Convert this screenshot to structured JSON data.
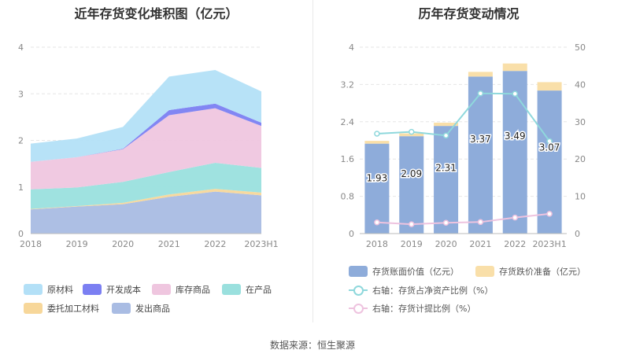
{
  "left_title": "近年存货变化堆积图（亿元）",
  "right_title": "历年存货变动情况",
  "footer": "数据来源：恒生聚源",
  "colors": {
    "raw_material": "#b3e0f7",
    "dev_cost": "#7b7ff2",
    "stock_goods": "#efc6df",
    "in_production": "#9ae0de",
    "consigned": "#f7d79a",
    "shipped": "#a9bce3",
    "bar_value": "#8eacda",
    "bar_reserve": "#f9dfa9",
    "line_ratio": "#8fd8dc",
    "line_provision": "#eec3df"
  },
  "chart_data": [
    {
      "type": "area",
      "stacked": true,
      "categories": [
        "2018",
        "2019",
        "2020",
        "2021",
        "2022",
        "2023H1"
      ],
      "ylim": [
        0,
        4
      ],
      "yticks": [
        "0",
        "1",
        "2",
        "3",
        "4"
      ],
      "series": [
        {
          "name": "发出商品",
          "values": [
            0.52,
            0.58,
            0.63,
            0.79,
            0.9,
            0.82
          ]
        },
        {
          "name": "委托加工材料",
          "values": [
            0.01,
            0.01,
            0.03,
            0.05,
            0.06,
            0.06
          ]
        },
        {
          "name": "在产品",
          "values": [
            0.42,
            0.4,
            0.45,
            0.48,
            0.56,
            0.53
          ]
        },
        {
          "name": "库存商品",
          "values": [
            0.59,
            0.65,
            0.7,
            1.22,
            1.17,
            0.9
          ]
        },
        {
          "name": "开发成本",
          "values": [
            0.0,
            0.0,
            0.01,
            0.11,
            0.1,
            0.07
          ]
        },
        {
          "name": "原材料",
          "values": [
            0.39,
            0.4,
            0.47,
            0.72,
            0.72,
            0.67
          ]
        }
      ],
      "legend": [
        "原材料",
        "开发成本",
        "库存商品",
        "在产品",
        "委托加工材料",
        "发出商品"
      ],
      "legend_position": "bottom"
    },
    {
      "type": "bar",
      "stacked": true,
      "categories": [
        "2018",
        "2019",
        "2020",
        "2021",
        "2022",
        "2023H1"
      ],
      "ylim": [
        0,
        4
      ],
      "yticks": [
        "0",
        "0.8",
        "1.6",
        "2.4",
        "3.2",
        "4"
      ],
      "y2lim": [
        0,
        50
      ],
      "y2ticks": [
        "0",
        "10",
        "20",
        "30",
        "40",
        "50"
      ],
      "series": [
        {
          "name": "存货账面价值（亿元）",
          "values": [
            1.93,
            2.09,
            2.31,
            3.37,
            3.49,
            3.07
          ],
          "labels": [
            "1.93",
            "2.09",
            "2.31",
            "3.37",
            "3.49",
            "3.07"
          ]
        },
        {
          "name": "存货跌价准备（亿元）",
          "values": [
            0.06,
            0.06,
            0.07,
            0.1,
            0.16,
            0.18
          ]
        }
      ],
      "lines": [
        {
          "name": "右轴：存货占净资产比例（%）",
          "axis": "right",
          "values": [
            26.8,
            27.3,
            26.3,
            37.6,
            37.5,
            24.8
          ]
        },
        {
          "name": "右轴：存货计提比例（%）",
          "axis": "right",
          "values": [
            3.0,
            2.5,
            2.9,
            3.1,
            4.3,
            5.3
          ]
        }
      ],
      "legend_position": "bottom"
    }
  ]
}
